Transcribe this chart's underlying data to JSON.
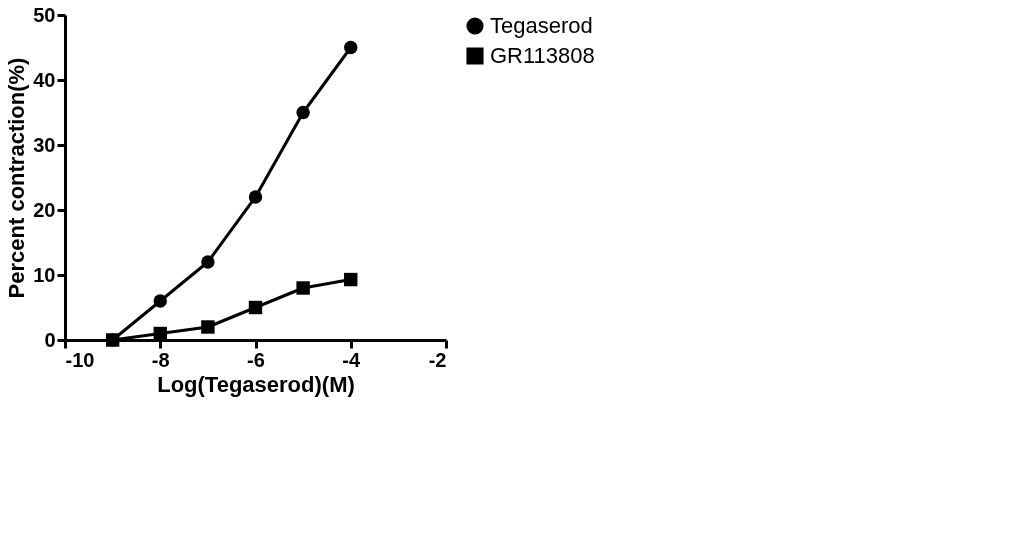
{
  "chart_data": {
    "type": "line",
    "xlabel": "Log(Tegaserod)(M)",
    "ylabel": "Percent contraction(%)",
    "x": [
      -9,
      -8,
      -7,
      -6,
      -5,
      -4
    ],
    "series": [
      {
        "name": "Tegaserod",
        "color": "#000000",
        "marker": "circle",
        "values": [
          0,
          6,
          12,
          22,
          35,
          45
        ]
      },
      {
        "name": "GR113808",
        "color": "#000000",
        "marker": "square",
        "values": [
          0,
          1,
          2,
          5,
          8,
          9.3
        ]
      }
    ],
    "xlim": [
      -10,
      -2
    ],
    "xticks": [
      -10,
      -8,
      -6,
      -4,
      -2
    ],
    "ylim": [
      0,
      50
    ],
    "yticks": [
      0,
      10,
      20,
      30,
      40,
      50
    ],
    "grid": false,
    "legend": "top right",
    "line_style": "solid"
  }
}
